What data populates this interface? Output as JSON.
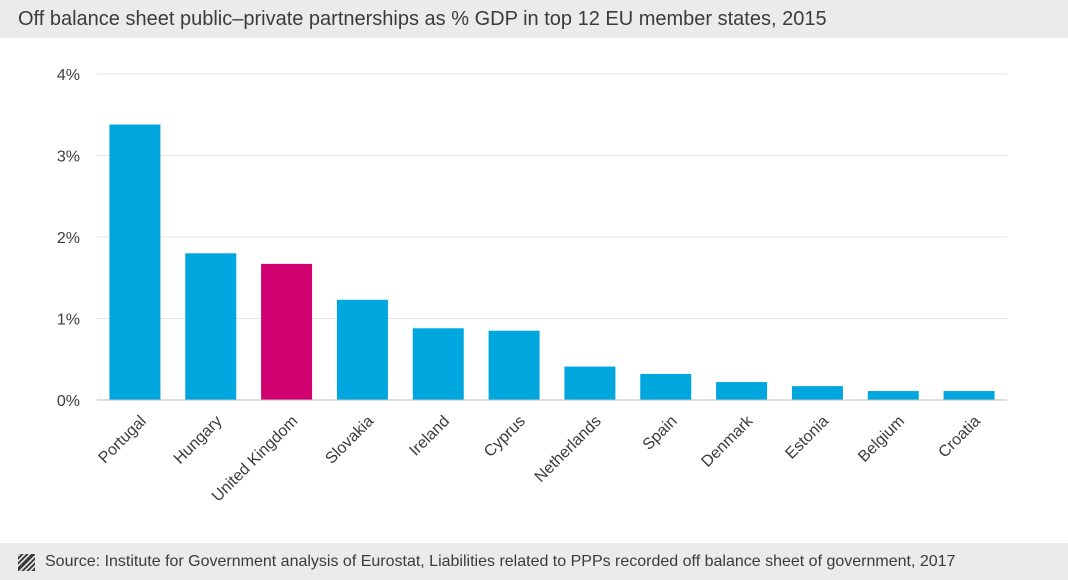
{
  "header": {
    "title": "Off balance sheet public–private partnerships as % GDP in top 12 EU member states, 2015"
  },
  "footer": {
    "source": "Source: Institute for Government analysis of Eurostat, Liabilities related to PPPs recorded off balance sheet of government, 2017",
    "icon": "hatched-square-icon"
  },
  "colors": {
    "bar": "#00a7de",
    "highlight": "#d10070",
    "header_bg": "#ebebeb",
    "text": "#3b3b3b",
    "grid": "#e6e6e6"
  },
  "chart_data": {
    "type": "bar",
    "title": "Off balance sheet public–private partnerships as % GDP in top 12 EU member states, 2015",
    "xlabel": "",
    "ylabel": "",
    "categories": [
      "Portugal",
      "Hungary",
      "United Kingdom",
      "Slovakia",
      "Ireland",
      "Cyprus",
      "Netherlands",
      "Spain",
      "Denmark",
      "Estonia",
      "Belgium",
      "Croatia"
    ],
    "values": [
      3.38,
      1.8,
      1.67,
      1.23,
      0.88,
      0.85,
      0.41,
      0.32,
      0.22,
      0.17,
      0.11,
      0.11
    ],
    "highlight_category": "United Kingdom",
    "ylim": [
      0,
      4
    ],
    "yticks": [
      0,
      1,
      2,
      3,
      4
    ],
    "ytick_labels": [
      "0%",
      "1%",
      "2%",
      "3%",
      "4%"
    ],
    "grid": true,
    "legend": "none"
  }
}
